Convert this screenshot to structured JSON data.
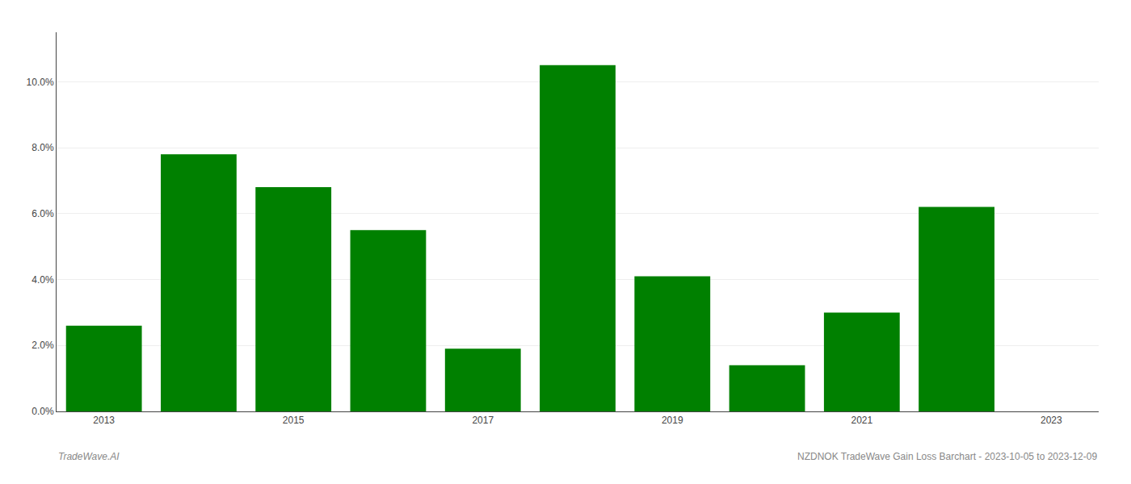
{
  "chart_data": {
    "type": "bar",
    "categories": [
      "2013",
      null,
      "2015",
      null,
      "2017",
      null,
      "2019",
      null,
      "2021",
      null,
      "2023"
    ],
    "values": [
      0.026,
      0.078,
      0.068,
      0.055,
      0.019,
      0.105,
      0.041,
      0.014,
      0.03,
      0.062,
      null
    ],
    "color": "#008000",
    "ylim": [
      0,
      0.115
    ],
    "yticks": [
      {
        "value": 0.0,
        "label": "0.0%"
      },
      {
        "value": 0.02,
        "label": "2.0%"
      },
      {
        "value": 0.04,
        "label": "4.0%"
      },
      {
        "value": 0.06,
        "label": "6.0%"
      },
      {
        "value": 0.08,
        "label": "8.0%"
      },
      {
        "value": 0.1,
        "label": "10.0%"
      }
    ],
    "grid": true,
    "annotations": [
      "TradeWave.AI",
      "NZDNOK TradeWave Gain Loss Barchart - 2023-10-05 to 2023-12-09"
    ]
  }
}
